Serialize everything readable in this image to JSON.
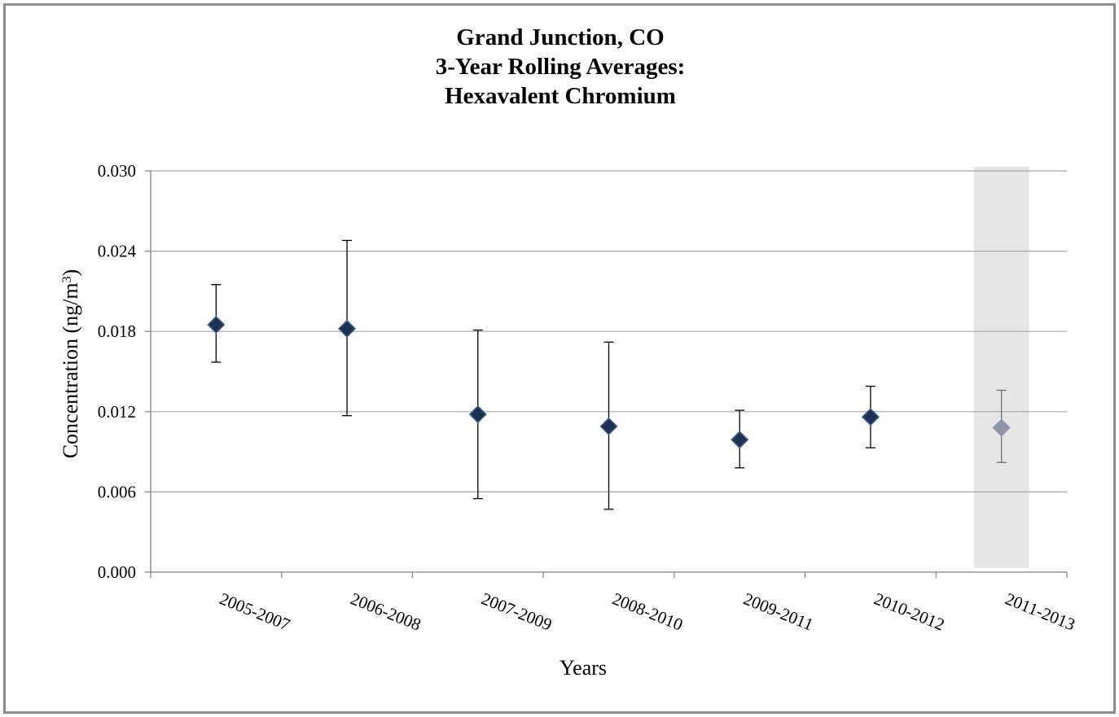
{
  "chart_data": {
    "type": "scatter",
    "title_lines": [
      "Grand Junction, CO",
      "3-Year Rolling Averages:",
      "Hexavalent Chromium"
    ],
    "xlabel": "Years",
    "ylabel_main": "Concentration (ng/m",
    "ylabel_sup": "3",
    "ylabel_end": ")",
    "ylim": [
      0,
      0.03
    ],
    "yticks": [
      "0.000",
      "0.006",
      "0.012",
      "0.018",
      "0.024",
      "0.030"
    ],
    "grid": true,
    "legend": "none",
    "highlighted_category": "2011-2013",
    "categories": [
      "2005-2007",
      "2006-2008",
      "2007-2009",
      "2008-2010",
      "2009-2011",
      "2010-2012",
      "2011-2013"
    ],
    "series": [
      {
        "values": [
          0.0185,
          0.0182,
          0.0118,
          0.0109,
          0.0099,
          0.0116,
          0.0108
        ],
        "error_upper": [
          0.0215,
          0.0248,
          0.0181,
          0.0172,
          0.0121,
          0.0139,
          0.0136
        ],
        "error_lower": [
          0.0157,
          0.0117,
          0.0055,
          0.0047,
          0.0078,
          0.0093,
          0.0082
        ]
      }
    ],
    "colors": {
      "marker": "#1f3150",
      "marker_edge": "#3d5f94",
      "highlight_marker": "#8d97a9",
      "highlight_band": "#e6e6e6",
      "gridline": "#a6a6a6",
      "error_bar": "#000000",
      "highlight_error_bar": "#6e6e6e"
    }
  }
}
